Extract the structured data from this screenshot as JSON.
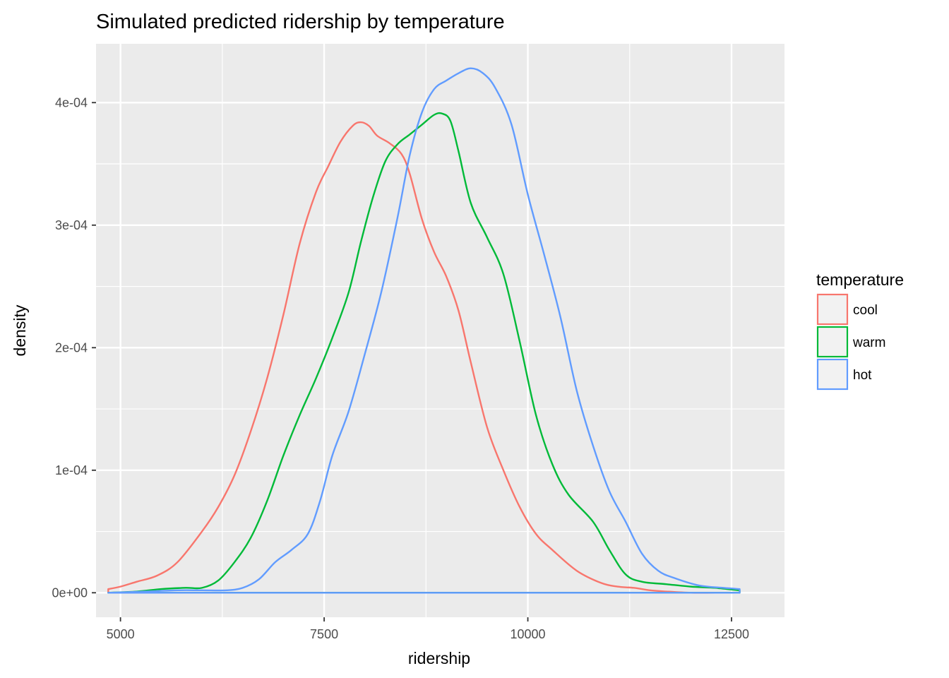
{
  "chart_data": {
    "type": "line",
    "title": "Simulated predicted ridership by temperature",
    "xlabel": "ridership",
    "ylabel": "density",
    "xlim": [
      4700,
      13150
    ],
    "ylim": [
      -2e-05,
      0.000448
    ],
    "x_ticks": [
      5000,
      7500,
      10000,
      12500
    ],
    "x_tick_labels": [
      "5000",
      "7500",
      "10000",
      "12500"
    ],
    "y_ticks": [
      0,
      0.0001,
      0.0002,
      0.0003,
      0.0004
    ],
    "y_tick_labels": [
      "0e+00",
      "1e-04",
      "2e-04",
      "3e-04",
      "4e-04"
    ],
    "grid": true,
    "legend": {
      "title": "temperature",
      "position": "right"
    },
    "series": [
      {
        "name": "cool",
        "color": "#F8766D",
        "x": [
          4850,
          5000,
          5200,
          5450,
          5700,
          6000,
          6200,
          6400,
          6600,
          6800,
          7000,
          7200,
          7400,
          7550,
          7700,
          7850,
          7950,
          8050,
          8150,
          8300,
          8450,
          8550,
          8700,
          8850,
          9000,
          9150,
          9300,
          9500,
          9700,
          9900,
          10100,
          10300,
          10600,
          10900,
          11100,
          11300,
          11500,
          11700,
          12000,
          12300,
          12600
        ],
        "y": [
          3e-06,
          5e-06,
          9e-06,
          1.4e-05,
          2.5e-05,
          5e-05,
          7e-05,
          9.6e-05,
          0.000132,
          0.000175,
          0.000227,
          0.000285,
          0.000327,
          0.000348,
          0.000368,
          0.000381,
          0.000384,
          0.000381,
          0.000373,
          0.000367,
          0.000358,
          0.000342,
          0.000305,
          0.000278,
          0.000258,
          0.00023,
          0.000188,
          0.000135,
          0.0001,
          7e-05,
          4.8e-05,
          3.5e-05,
          1.8e-05,
          8e-06,
          5e-06,
          4e-06,
          2e-06,
          1e-06,
          0,
          0,
          0
        ]
      },
      {
        "name": "warm",
        "color": "#00BA38",
        "x": [
          4850,
          5200,
          5500,
          5800,
          6000,
          6200,
          6400,
          6600,
          6800,
          7000,
          7200,
          7400,
          7600,
          7800,
          7950,
          8100,
          8250,
          8400,
          8550,
          8700,
          8850,
          8950,
          9050,
          9150,
          9300,
          9500,
          9700,
          9900,
          10100,
          10300,
          10500,
          10800,
          11000,
          11200,
          11400,
          11700,
          12000,
          12300,
          12600
        ],
        "y": [
          0,
          1e-06,
          3e-06,
          4e-06,
          4e-06,
          1e-05,
          2.5e-05,
          4.5e-05,
          7.5e-05,
          0.000112,
          0.000145,
          0.000175,
          0.000208,
          0.000245,
          0.000286,
          0.000323,
          0.000352,
          0.000366,
          0.000374,
          0.000382,
          0.00039,
          0.000391,
          0.000385,
          0.00036,
          0.000318,
          0.00029,
          0.00026,
          0.000205,
          0.000145,
          0.000105,
          8e-05,
          5.8e-05,
          3.5e-05,
          1.5e-05,
          9e-06,
          7e-06,
          5e-06,
          4e-06,
          2e-06
        ]
      },
      {
        "name": "hot",
        "color": "#619CFF",
        "x": [
          4850,
          5300,
          5700,
          6000,
          6300,
          6500,
          6700,
          6900,
          7100,
          7300,
          7450,
          7600,
          7800,
          8000,
          8200,
          8400,
          8550,
          8700,
          8850,
          9000,
          9150,
          9300,
          9450,
          9600,
          9800,
          10000,
          10200,
          10400,
          10600,
          10800,
          11000,
          11200,
          11400,
          11600,
          11800,
          12100,
          12400,
          12600
        ],
        "y": [
          0,
          1e-06,
          2e-06,
          2e-06,
          2e-06,
          4e-06,
          1.1e-05,
          2.5e-05,
          3.5e-05,
          4.8e-05,
          7.5e-05,
          0.000112,
          0.000148,
          0.000195,
          0.000245,
          0.000306,
          0.000357,
          0.000392,
          0.000411,
          0.000418,
          0.000424,
          0.000428,
          0.000424,
          0.000412,
          0.000382,
          0.000325,
          0.000276,
          0.000225,
          0.000165,
          0.00012,
          8.3e-05,
          5.8e-05,
          3.2e-05,
          1.8e-05,
          1.2e-05,
          6e-06,
          4e-06,
          3e-06
        ]
      }
    ]
  }
}
